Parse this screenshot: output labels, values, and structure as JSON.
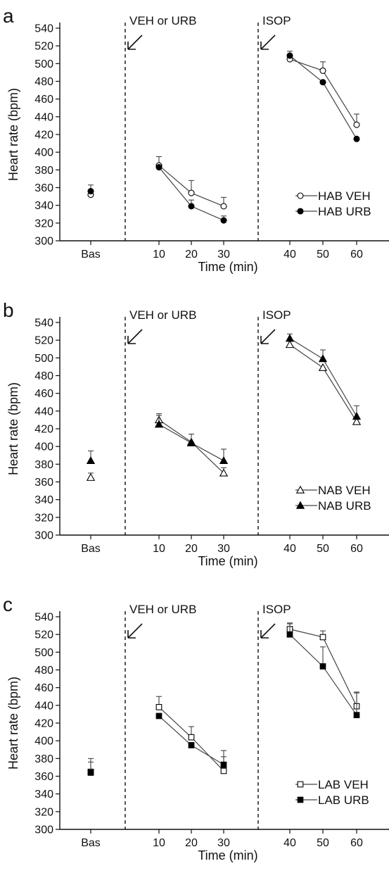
{
  "chart_data": [
    {
      "type": "line",
      "panel": "a",
      "xlabel": "Time (min)",
      "ylabel": "Heart rate (bpm)",
      "ylim": [
        300,
        540
      ],
      "yticks": [
        300,
        320,
        340,
        360,
        380,
        400,
        420,
        440,
        460,
        480,
        500,
        520,
        540
      ],
      "x_tick_labels": [
        "Bas",
        "10",
        "20",
        "30",
        "40",
        "50",
        "60"
      ],
      "annotations": [
        "VEH or URB",
        "ISOP"
      ],
      "legend_position": "bottom-right",
      "series": [
        {
          "name": "HAB VEH",
          "marker": "circle",
          "filled": false,
          "x": [
            "Bas",
            "10",
            "20",
            "30",
            "40",
            "50",
            "60"
          ],
          "y": [
            352,
            385,
            354,
            339,
            505,
            492,
            431
          ],
          "err": [
            0,
            10,
            14,
            10,
            0,
            10,
            12
          ]
        },
        {
          "name": "HAB URB",
          "marker": "circle",
          "filled": true,
          "x": [
            "Bas",
            "10",
            "20",
            "30",
            "40",
            "50",
            "60"
          ],
          "y": [
            356,
            383,
            339,
            323,
            509,
            479,
            415
          ],
          "err": [
            7,
            0,
            7,
            5,
            5,
            0,
            0
          ]
        }
      ]
    },
    {
      "type": "line",
      "panel": "b",
      "xlabel": "Time (min)",
      "ylabel": "Heart rate (bpm)",
      "ylim": [
        300,
        540
      ],
      "yticks": [
        300,
        320,
        340,
        360,
        380,
        400,
        420,
        440,
        460,
        480,
        500,
        520,
        540
      ],
      "x_tick_labels": [
        "Bas",
        "10",
        "20",
        "30",
        "40",
        "50",
        "60"
      ],
      "annotations": [
        "VEH or URB",
        "ISOP"
      ],
      "legend_position": "bottom-right",
      "series": [
        {
          "name": "NAB VEH",
          "marker": "triangle",
          "filled": false,
          "x": [
            "Bas",
            "10",
            "20",
            "30",
            "40",
            "50",
            "60"
          ],
          "y": [
            365,
            430,
            405,
            370,
            515,
            489,
            428
          ],
          "err": [
            5,
            7,
            0,
            6,
            0,
            0,
            0
          ]
        },
        {
          "name": "NAB URB",
          "marker": "triangle",
          "filled": true,
          "x": [
            "Bas",
            "10",
            "20",
            "30",
            "40",
            "50",
            "60"
          ],
          "y": [
            384,
            425,
            404,
            384,
            522,
            499,
            434
          ],
          "err": [
            11,
            10,
            10,
            13,
            5,
            10,
            12
          ]
        }
      ]
    },
    {
      "type": "line",
      "panel": "c",
      "xlabel": "Time (min)",
      "ylabel": "Heart rate (bpm)",
      "ylim": [
        300,
        540
      ],
      "yticks": [
        300,
        320,
        340,
        360,
        380,
        400,
        420,
        440,
        460,
        480,
        500,
        520,
        540
      ],
      "x_tick_labels": [
        "Bas",
        "10",
        "20",
        "30",
        "40",
        "50",
        "60"
      ],
      "annotations": [
        "VEH or URB",
        "ISOP"
      ],
      "legend_position": "bottom-right",
      "series": [
        {
          "name": "LAB VEH",
          "marker": "square",
          "filled": false,
          "x": [
            "Bas",
            "10",
            "20",
            "30",
            "40",
            "50",
            "60"
          ],
          "y": [
            365,
            438,
            404,
            366,
            526,
            517,
            439
          ],
          "err": [
            15,
            12,
            12,
            23,
            7,
            7,
            16
          ]
        },
        {
          "name": "LAB URB",
          "marker": "square",
          "filled": true,
          "x": [
            "Bas",
            "10",
            "20",
            "30",
            "40",
            "50",
            "60"
          ],
          "y": [
            364,
            428,
            395,
            373,
            520,
            484,
            429
          ],
          "err": [
            12,
            0,
            0,
            9,
            12,
            22,
            25
          ]
        }
      ]
    }
  ]
}
